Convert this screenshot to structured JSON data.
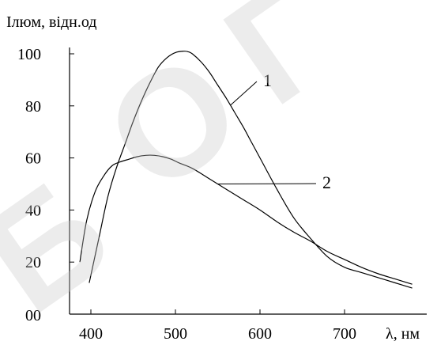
{
  "chart_data": {
    "type": "line",
    "ylabel": "Iлюм, відн.од",
    "xlabel": "λ, нм",
    "xlim": [
      385,
      790
    ],
    "ylim": [
      0,
      105
    ],
    "x_ticks": [
      400,
      500,
      600,
      700
    ],
    "y_ticks": [
      0,
      20,
      40,
      60,
      80,
      100
    ],
    "x_tick_labels": [
      "400",
      "500",
      "600",
      "700"
    ],
    "y_tick_labels": [
      "00",
      "20",
      "40",
      "60",
      "80",
      "100"
    ],
    "grid": false,
    "series": [
      {
        "name": "1",
        "color": "#000000",
        "x": [
          398,
          410,
          420,
          430,
          440,
          450,
          460,
          470,
          480,
          490,
          500,
          510,
          515,
          520,
          530,
          540,
          550,
          560,
          570,
          580,
          590,
          600,
          620,
          640,
          660,
          680,
          700,
          720,
          740,
          760,
          780
        ],
        "y": [
          12,
          30,
          45,
          56,
          65,
          74,
          82,
          89,
          95,
          98.5,
          100.5,
          101,
          100.8,
          100,
          97,
          93,
          88,
          83,
          77.5,
          72,
          66,
          60,
          48,
          37,
          29,
          22,
          18,
          16,
          14,
          12,
          10
        ]
      },
      {
        "name": "2",
        "color": "#000000",
        "x": [
          387,
          395,
          405,
          415,
          425,
          435,
          445,
          455,
          465,
          475,
          485,
          495,
          505,
          520,
          540,
          560,
          580,
          600,
          620,
          640,
          660,
          680,
          700,
          720,
          740,
          760,
          780
        ],
        "y": [
          20,
          36,
          47,
          53,
          57,
          58.5,
          59.5,
          60.5,
          61,
          61,
          60.5,
          59.5,
          58,
          56,
          52,
          48,
          44,
          40,
          35.5,
          31.5,
          28,
          24,
          21,
          18,
          15.5,
          13.5,
          11.5
        ]
      }
    ],
    "annotations": [
      {
        "text": "1",
        "series": "1",
        "at_x": 565
      },
      {
        "text": "2",
        "series": "2",
        "at_x": 550
      }
    ]
  }
}
